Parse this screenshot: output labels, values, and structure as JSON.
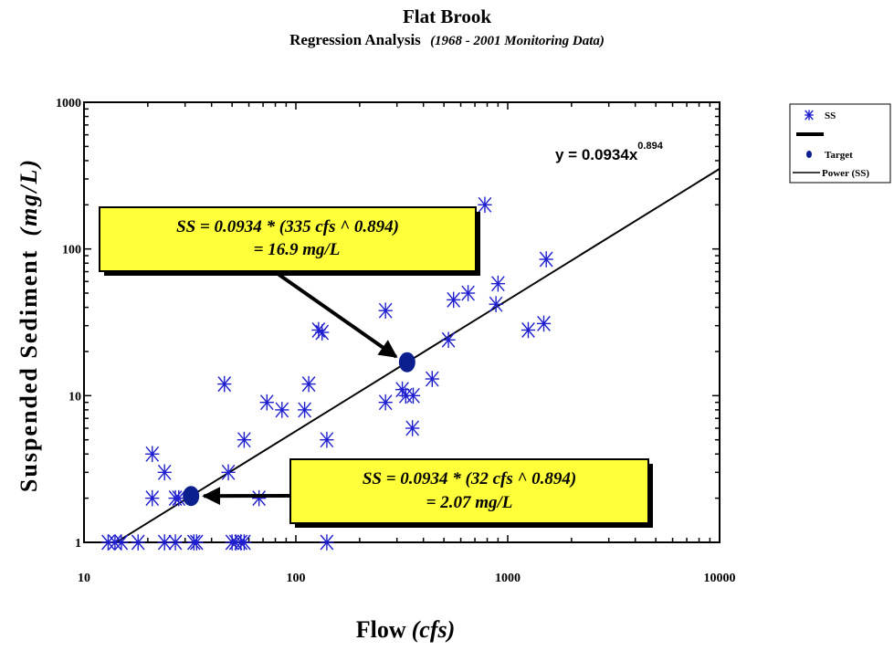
{
  "chart_data": {
    "type": "scatter",
    "title": "Flat Brook",
    "subtitle": "Regression Analysis",
    "subtitle_note": "(1968 - 2001 Monitoring Data)",
    "xlabel": "Flow",
    "xlabel_unit": "(cfs)",
    "ylabel": "Suspended Sediment",
    "ylabel_unit": "(mg/L)",
    "x_scale": "log",
    "y_scale": "log",
    "xlim": [
      10,
      10000
    ],
    "ylim": [
      1,
      1000
    ],
    "x_ticks": [
      "10",
      "100",
      "1000",
      "10000"
    ],
    "y_ticks": [
      "1",
      "10",
      "100",
      "1000"
    ],
    "grid": false,
    "legend_position": "right",
    "legend": [
      {
        "label": "SS",
        "marker": "asterisk",
        "color": "#1f1fd0"
      },
      {
        "label": "",
        "marker": "thick-line",
        "color": "#000000"
      },
      {
        "label": "Target",
        "marker": "dot",
        "color": "#0b1f8f"
      },
      {
        "label": "Power (SS)",
        "marker": "line",
        "color": "#000000"
      }
    ],
    "trendline": {
      "name": "Power (SS)",
      "coef": 0.0934,
      "exp": 0.894,
      "x_range": [
        14,
        10000
      ]
    },
    "equation": {
      "prefix": "y = 0.0934x",
      "exponent": "0.894"
    },
    "series": [
      {
        "name": "SS",
        "color": "#1f1fd0",
        "points": [
          [
            13,
            1
          ],
          [
            14,
            1
          ],
          [
            15,
            1
          ],
          [
            18,
            1
          ],
          [
            24,
            1
          ],
          [
            27,
            1
          ],
          [
            33,
            1
          ],
          [
            34,
            1
          ],
          [
            50,
            1
          ],
          [
            52,
            1
          ],
          [
            55,
            1
          ],
          [
            57,
            1
          ],
          [
            140,
            1
          ],
          [
            21,
            2
          ],
          [
            27,
            2
          ],
          [
            28,
            2
          ],
          [
            67,
            2
          ],
          [
            24,
            3
          ],
          [
            48,
            3
          ],
          [
            21,
            4
          ],
          [
            57,
            5
          ],
          [
            140,
            5
          ],
          [
            46,
            12
          ],
          [
            73,
            9
          ],
          [
            86,
            8
          ],
          [
            110,
            8
          ],
          [
            115,
            12
          ],
          [
            128,
            28
          ],
          [
            133,
            27
          ],
          [
            265,
            9
          ],
          [
            265,
            38
          ],
          [
            318,
            11
          ],
          [
            330,
            10
          ],
          [
            358,
            10
          ],
          [
            355,
            6
          ],
          [
            440,
            13
          ],
          [
            525,
            24
          ],
          [
            555,
            45
          ],
          [
            650,
            50
          ],
          [
            780,
            200
          ],
          [
            880,
            42
          ],
          [
            900,
            58
          ],
          [
            1250,
            28
          ],
          [
            1480,
            31
          ],
          [
            1520,
            85
          ]
        ]
      },
      {
        "name": "Target",
        "color": "#0b1f8f",
        "points": [
          [
            32,
            2.07
          ],
          [
            335,
            16.9
          ]
        ]
      }
    ],
    "annotations": [
      {
        "line1": "SS = 0.0934 * (335 cfs  ^  0.894)",
        "line2": "= 16.9 mg/L",
        "target": [
          335,
          16.9
        ]
      },
      {
        "line1": "SS = 0.0934 * (32 cfs  ^  0.894)",
        "line2": "= 2.07 mg/L",
        "target": [
          32,
          2.07
        ]
      }
    ]
  }
}
